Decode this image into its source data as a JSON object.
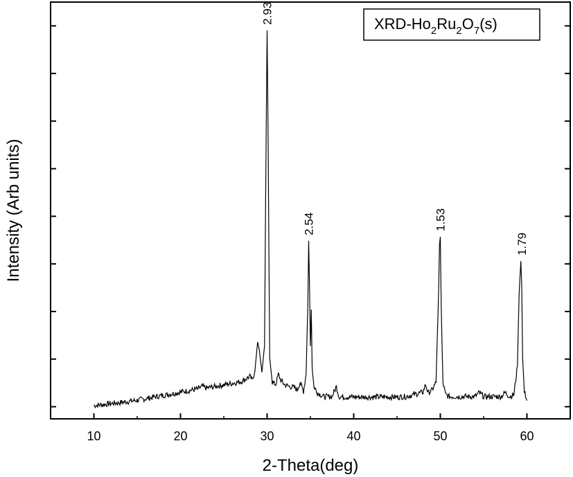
{
  "chart_data": {
    "type": "line",
    "xlabel": "2-Theta(deg)",
    "ylabel": "Intensity (Arb units)",
    "xlim": [
      5,
      65
    ],
    "ylim": [
      -3,
      100
    ],
    "x_ticks": [
      10,
      20,
      30,
      40,
      50,
      60
    ],
    "x_tick_labels": [
      "10",
      "20",
      "30",
      "40",
      "50",
      "60"
    ],
    "y_tick_labels": [],
    "y_ticks_unlabeled": true,
    "legend": {
      "position": "top-right",
      "prefix": "XRD-Ho",
      "sub1": "2",
      "mid": "Ru",
      "sub2": "2",
      "tail": "O",
      "sub3": "7",
      "suffix": "(s)"
    },
    "series": [
      {
        "values_note_omitted": true,
        "x": [
          10,
          11,
          12,
          13,
          14,
          15,
          16,
          17,
          18,
          19,
          20,
          21,
          22,
          22.5,
          23,
          24,
          25,
          26,
          27,
          27.5,
          28,
          28.3,
          28.6,
          28.9,
          29.1,
          29.4,
          29.7,
          29.9,
          30.0,
          30.1,
          30.3,
          30.6,
          31.0,
          31.3,
          31.6,
          32,
          32.5,
          33,
          33.5,
          33.8,
          34.2,
          34.5,
          34.7,
          34.8,
          34.9,
          35.0,
          35.1,
          35.2,
          35.4,
          35.8,
          36.5,
          37,
          37.5,
          38,
          38.3,
          39,
          40,
          41,
          42,
          43,
          44,
          45,
          46,
          47,
          48,
          48.3,
          48.6,
          49,
          49.5,
          49.8,
          49.9,
          50.0,
          50.1,
          50.3,
          50.6,
          51,
          52,
          53,
          54,
          54.5,
          55,
          56,
          57,
          57.5,
          58,
          58.5,
          58.9,
          59.1,
          59.3,
          59.4,
          59.5,
          59.7,
          60.0
        ],
        "y": [
          0.3,
          0.5,
          0.8,
          1.0,
          1.3,
          1.6,
          2.0,
          2.4,
          2.8,
          3.2,
          3.6,
          4.0,
          4.4,
          5.0,
          4.6,
          5.0,
          5.4,
          5.8,
          6.2,
          6.8,
          7.5,
          6.5,
          9.0,
          16.0,
          14.0,
          8.5,
          15.0,
          70.0,
          93.0,
          70.0,
          12.0,
          6.0,
          5.5,
          8.0,
          6.5,
          5.5,
          5.0,
          4.8,
          4.2,
          6.0,
          3.8,
          8.0,
          25.0,
          41.0,
          30.0,
          15.0,
          24.0,
          10.0,
          5.0,
          3.5,
          2.5,
          2.5,
          2.5,
          5.0,
          2.5,
          2.4,
          2.4,
          2.4,
          2.4,
          2.4,
          2.4,
          2.4,
          2.5,
          3.0,
          3.6,
          5.5,
          3.4,
          4.0,
          6.0,
          28.0,
          40.0,
          42.0,
          25.0,
          6.0,
          3.0,
          2.5,
          2.5,
          2.5,
          2.5,
          3.5,
          2.5,
          2.5,
          2.5,
          3.5,
          2.5,
          3.0,
          10.0,
          28.0,
          36.0,
          30.0,
          12.0,
          4.0,
          1.5
        ]
      }
    ],
    "annotations": [
      {
        "text": "2.93",
        "x": 30.0,
        "y": 93.0
      },
      {
        "text": "2.54",
        "x": 34.8,
        "y": 41.0
      },
      {
        "text": "1.53",
        "x": 50.0,
        "y": 42.0
      },
      {
        "text": "1.79",
        "x": 59.4,
        "y": 36.0
      }
    ]
  }
}
